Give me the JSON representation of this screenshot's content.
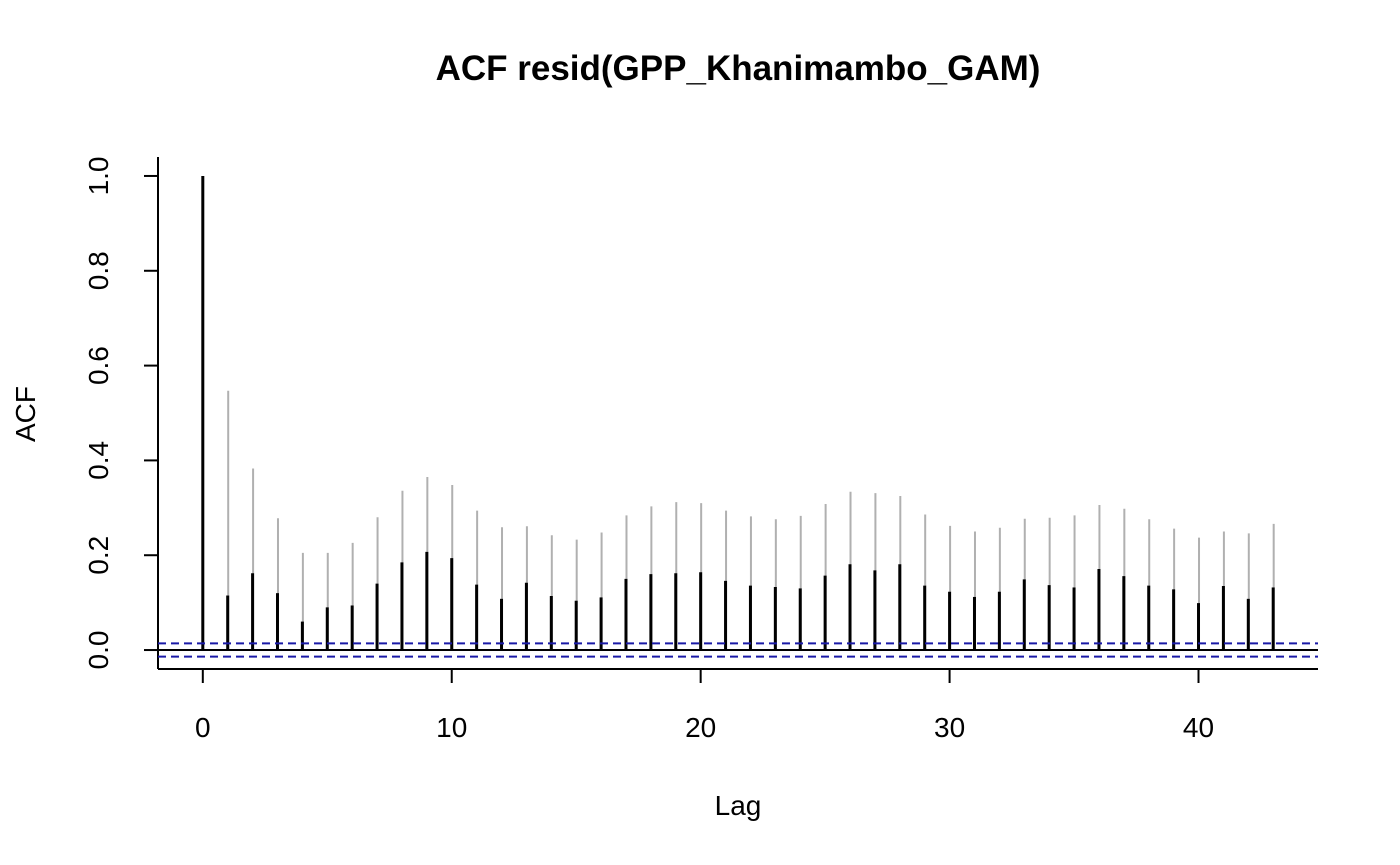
{
  "chart_data": {
    "type": "bar",
    "title": "ACF resid(GPP_Khanimambo_GAM)",
    "xlabel": "Lag",
    "ylabel": "ACF",
    "xlim": [
      -1.8,
      44.8
    ],
    "ylim": [
      -0.04,
      1.04
    ],
    "xticks": [
      0,
      10,
      20,
      30,
      40
    ],
    "yticks": [
      0.0,
      0.2,
      0.4,
      0.6,
      0.8,
      1.0
    ],
    "ytick_labels": [
      "0.0",
      "0.2",
      "0.4",
      "0.6",
      "0.8",
      "1.0"
    ],
    "grid": false,
    "legend": "none",
    "x": [
      0,
      1,
      2,
      3,
      4,
      5,
      6,
      7,
      8,
      9,
      10,
      11,
      12,
      13,
      14,
      15,
      16,
      17,
      18,
      19,
      20,
      21,
      22,
      23,
      24,
      25,
      26,
      27,
      28,
      29,
      30,
      31,
      32,
      33,
      34,
      35,
      36,
      37,
      38,
      39,
      40,
      41,
      42,
      43
    ],
    "series": [
      {
        "values": [
          1.0,
          0.115,
          0.162,
          0.12,
          0.06,
          0.09,
          0.094,
          0.14,
          0.185,
          0.207,
          0.194,
          0.138,
          0.108,
          0.142,
          0.114,
          0.104,
          0.111,
          0.15,
          0.16,
          0.162,
          0.164,
          0.146,
          0.136,
          0.133,
          0.13,
          0.157,
          0.181,
          0.168,
          0.181,
          0.136,
          0.123,
          0.112,
          0.123,
          0.149,
          0.137,
          0.132,
          0.171,
          0.156,
          0.136,
          0.128,
          0.099,
          0.135,
          0.108,
          0.132
        ],
        "color": "#000000"
      },
      {
        "values": [
          null,
          0.547,
          0.383,
          0.278,
          0.205,
          0.205,
          0.226,
          0.28,
          0.336,
          0.365,
          0.348,
          0.294,
          0.259,
          0.261,
          0.242,
          0.233,
          0.248,
          0.284,
          0.303,
          0.312,
          0.31,
          0.294,
          0.282,
          0.276,
          0.283,
          0.308,
          0.334,
          0.331,
          0.325,
          0.286,
          0.262,
          0.25,
          0.258,
          0.277,
          0.279,
          0.284,
          0.306,
          0.298,
          0.276,
          0.256,
          0.237,
          0.25,
          0.246,
          0.266
        ],
        "color": "#b0b0b0"
      }
    ],
    "ci_bounds": [
      0.014,
      -0.014
    ],
    "ci_color": "#1a1aa6"
  }
}
